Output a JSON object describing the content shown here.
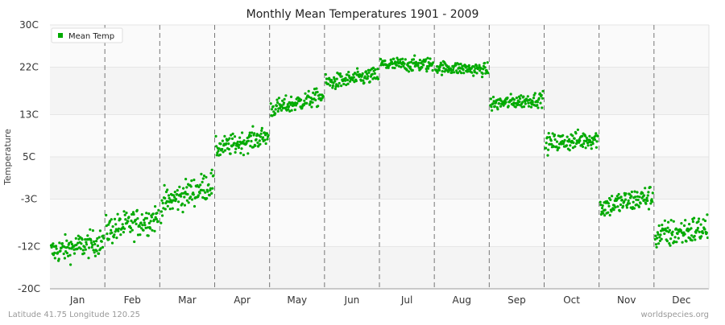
{
  "chart_data": {
    "type": "scatter",
    "title": "Monthly Mean Temperatures 1901 - 2009",
    "ylabel": "Temperature",
    "xlabel": "",
    "categories": [
      "Jan",
      "Feb",
      "Mar",
      "Apr",
      "May",
      "Jun",
      "Jul",
      "Aug",
      "Sep",
      "Oct",
      "Nov",
      "Dec"
    ],
    "y_ticks": [
      "-20C",
      "-12C",
      "-3C",
      "5C",
      "13C",
      "22C",
      "30C"
    ],
    "y_tick_values": [
      -20,
      -12,
      -3,
      5,
      13,
      22,
      30
    ],
    "ylim": [
      -20,
      30
    ],
    "series": [
      {
        "name": "Mean Temp",
        "color": "#00aa00",
        "years": [
          1901,
          2009
        ],
        "monthly_start": [
          -13,
          -9,
          -4,
          6.5,
          14,
          19,
          22.5,
          22,
          15,
          7.5,
          -4.5,
          -10
        ],
        "monthly_end": [
          -11,
          -6.5,
          0,
          9,
          16.5,
          20.5,
          22.5,
          21.5,
          16,
          8.5,
          -2.5,
          -8.5
        ],
        "monthly_spread": [
          1.6,
          1.8,
          1.8,
          1.3,
          1.1,
          1.0,
          0.9,
          0.8,
          0.9,
          1.2,
          1.5,
          1.8
        ]
      }
    ],
    "legend_position": "top-left",
    "grid": true,
    "background_bands": true
  },
  "footer": {
    "location": "Latitude 41.75 Longitude 120.25",
    "source": "worldspecies.org"
  }
}
